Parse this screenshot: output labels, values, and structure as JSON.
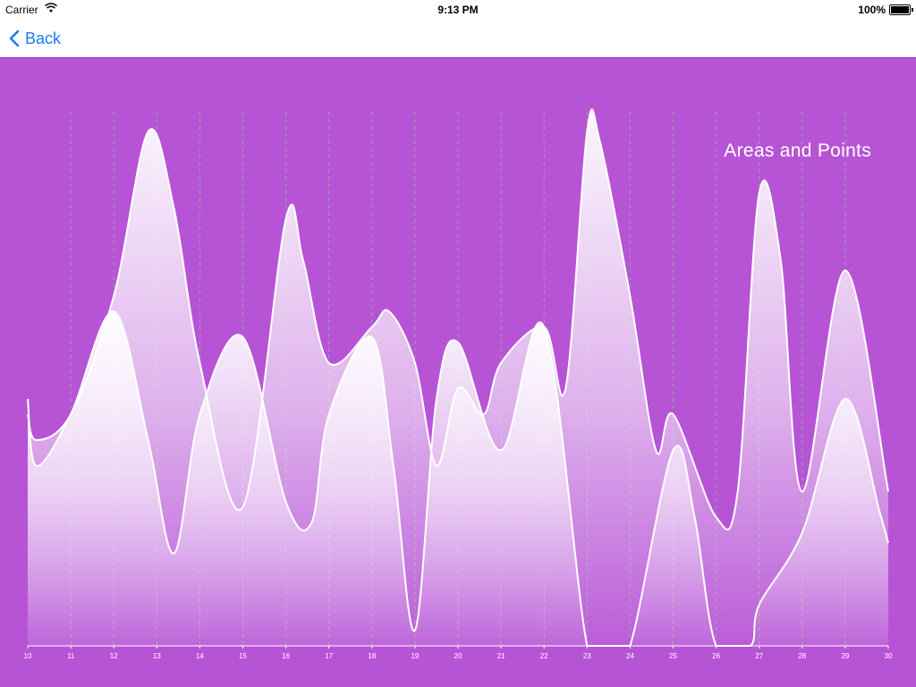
{
  "status_bar": {
    "carrier": "Carrier",
    "time": "9:13 PM",
    "battery": "100%"
  },
  "nav": {
    "back_label": "Back"
  },
  "chart_data": {
    "type": "area",
    "title": "Areas and Points",
    "x_ticks": [
      "10",
      "11",
      "12",
      "13",
      "14",
      "15",
      "16",
      "17",
      "18",
      "19",
      "20",
      "21",
      "22",
      "23",
      "24",
      "25",
      "26",
      "27",
      "28",
      "29",
      "30"
    ],
    "xlim": [
      10,
      30
    ],
    "ylim": [
      0,
      100
    ],
    "grid": "vertical dashed",
    "series": [
      {
        "x": [
          10,
          10.2,
          11,
          12,
          12.8,
          13.4,
          14,
          15,
          16,
          16.4,
          17,
          18,
          18.4,
          19,
          19.5,
          20,
          20.6,
          21,
          22,
          22.5,
          23,
          23.3,
          24,
          24.6,
          25,
          26,
          26.5,
          27,
          27.5,
          28,
          29,
          30
        ],
        "y": [
          45,
          40,
          45,
          68,
          100,
          85,
          55,
          27,
          83,
          75,
          55,
          62,
          65,
          55,
          35,
          50,
          45,
          55,
          62,
          50,
          100,
          98,
          68,
          38,
          45,
          25,
          30,
          88,
          75,
          30,
          73,
          30
        ]
      },
      {
        "x": [
          10,
          10.2,
          11,
          12,
          12.8,
          13.4,
          14,
          15,
          16,
          16.6,
          17,
          18,
          18.5,
          19,
          19.5,
          20,
          21,
          22,
          23,
          23.5,
          24,
          25,
          25.5,
          26,
          26.8,
          27,
          28,
          29,
          29.8,
          30
        ],
        "y": [
          48,
          35,
          45,
          65,
          40,
          18,
          45,
          60,
          28,
          24,
          45,
          60,
          35,
          3,
          48,
          59,
          38,
          62,
          0,
          0,
          0,
          38,
          25,
          0,
          0,
          8,
          22,
          48,
          26,
          20
        ]
      }
    ]
  }
}
